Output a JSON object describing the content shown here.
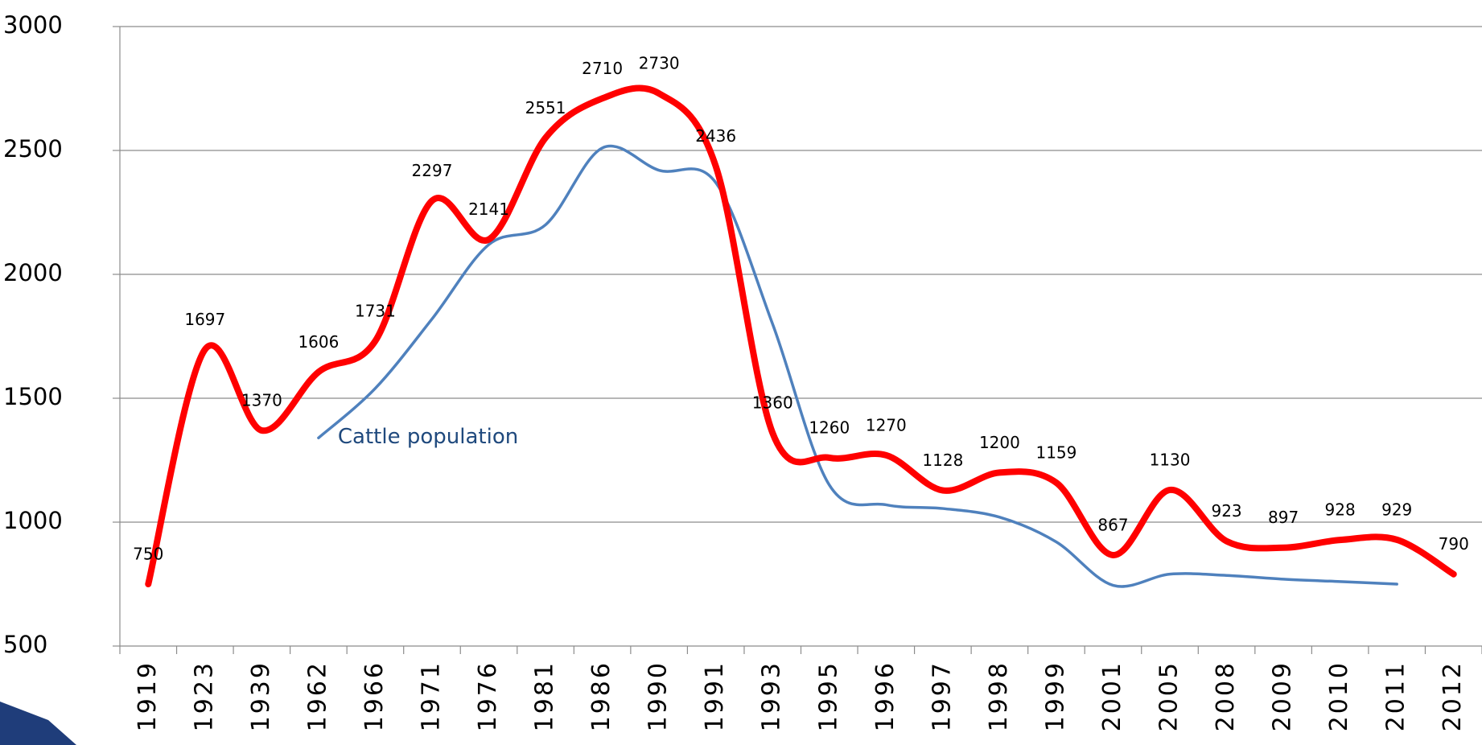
{
  "chart_data": {
    "type": "line",
    "categories": [
      "1919",
      "1923",
      "1939",
      "1962",
      "1966",
      "1971",
      "1976",
      "1981",
      "1986",
      "1990",
      "1991",
      "1993",
      "1995",
      "1996",
      "1997",
      "1998",
      "1999",
      "2001",
      "2005",
      "2008",
      "2009",
      "2010",
      "2011",
      "2012"
    ],
    "series": [
      {
        "color": "#ff0000",
        "values": [
          750,
          1697,
          1370,
          1606,
          1731,
          2297,
          2141,
          2551,
          2710,
          2730,
          2436,
          1360,
          1260,
          1270,
          1128,
          1200,
          1159,
          867,
          1130,
          923,
          897,
          928,
          929,
          790
        ],
        "data_labels": true
      },
      {
        "name": "Cattle population",
        "color": "#4f81bd",
        "values": [
          null,
          null,
          null,
          1340,
          1540,
          1820,
          2120,
          2200,
          2510,
          2420,
          2370,
          1800,
          1150,
          1070,
          1055,
          1020,
          920,
          745,
          790,
          785,
          770,
          760,
          750,
          null
        ],
        "data_labels": false
      }
    ],
    "ylim": [
      500,
      3000
    ],
    "yticks": [
      500,
      1000,
      1500,
      2000,
      2500,
      3000
    ],
    "grid": true
  }
}
